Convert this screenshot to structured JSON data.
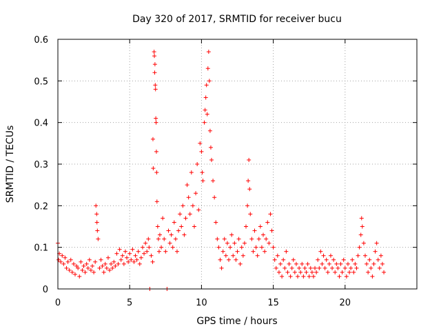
{
  "chart_data": {
    "type": "scatter",
    "title": "Day 320 of 2017, SRMTID for receiver bucu",
    "xlabel": "GPS time / hours",
    "ylabel": "SRMTID / TECUs",
    "xlim": [
      0,
      25
    ],
    "ylim": [
      0,
      0.6
    ],
    "xticks": [
      0,
      5,
      10,
      15,
      20
    ],
    "yticks": [
      0,
      0.1,
      0.2,
      0.3,
      0.4,
      0.5,
      0.6
    ],
    "xtick_labels": [
      "0",
      "5",
      "10",
      "15",
      "20"
    ],
    "ytick_labels": [
      "0",
      "0.1",
      "0.2",
      "0.3",
      "0.4",
      "0.5",
      "0.6"
    ],
    "grid": true,
    "marker": "plus",
    "color": "#ff0000",
    "series": [
      {
        "name": "SRMTID",
        "points": [
          [
            0.0,
            0.11
          ],
          [
            0.05,
            0.07
          ],
          [
            0.1,
            0.085
          ],
          [
            0.2,
            0.065
          ],
          [
            0.3,
            0.08
          ],
          [
            0.4,
            0.06
          ],
          [
            0.5,
            0.075
          ],
          [
            0.6,
            0.05
          ],
          [
            0.7,
            0.065
          ],
          [
            0.8,
            0.045
          ],
          [
            0.9,
            0.07
          ],
          [
            1.0,
            0.04
          ],
          [
            1.1,
            0.06
          ],
          [
            1.2,
            0.035
          ],
          [
            1.3,
            0.055
          ],
          [
            1.4,
            0.05
          ],
          [
            1.5,
            0.03
          ],
          [
            1.6,
            0.065
          ],
          [
            1.7,
            0.045
          ],
          [
            1.8,
            0.055
          ],
          [
            1.9,
            0.04
          ],
          [
            2.0,
            0.06
          ],
          [
            2.1,
            0.05
          ],
          [
            2.2,
            0.07
          ],
          [
            2.3,
            0.045
          ],
          [
            2.4,
            0.055
          ],
          [
            2.5,
            0.04
          ],
          [
            2.6,
            0.065
          ],
          [
            2.65,
            0.2
          ],
          [
            2.7,
            0.18
          ],
          [
            2.72,
            0.16
          ],
          [
            2.75,
            0.14
          ],
          [
            2.8,
            0.12
          ],
          [
            2.9,
            0.05
          ],
          [
            3.0,
            0.07
          ],
          [
            3.1,
            0.055
          ],
          [
            3.2,
            0.04
          ],
          [
            3.3,
            0.06
          ],
          [
            3.4,
            0.05
          ],
          [
            3.5,
            0.075
          ],
          [
            3.6,
            0.045
          ],
          [
            3.7,
            0.06
          ],
          [
            3.8,
            0.05
          ],
          [
            3.9,
            0.065
          ],
          [
            4.0,
            0.055
          ],
          [
            4.1,
            0.085
          ],
          [
            4.2,
            0.06
          ],
          [
            4.3,
            0.095
          ],
          [
            4.4,
            0.07
          ],
          [
            4.5,
            0.08
          ],
          [
            4.6,
            0.06
          ],
          [
            4.7,
            0.09
          ],
          [
            4.8,
            0.075
          ],
          [
            4.9,
            0.065
          ],
          [
            5.0,
            0.085
          ],
          [
            5.1,
            0.07
          ],
          [
            5.2,
            0.095
          ],
          [
            5.3,
            0.065
          ],
          [
            5.4,
            0.08
          ],
          [
            5.5,
            0.07
          ],
          [
            5.6,
            0.09
          ],
          [
            5.7,
            0.06
          ],
          [
            5.8,
            0.075
          ],
          [
            5.9,
            0.1
          ],
          [
            6.0,
            0.085
          ],
          [
            6.1,
            0.11
          ],
          [
            6.2,
            0.09
          ],
          [
            6.3,
            0.12
          ],
          [
            6.35,
            0.1
          ],
          [
            6.4,
            0.0
          ],
          [
            6.5,
            0.08
          ],
          [
            6.6,
            0.065
          ],
          [
            6.62,
            0.36
          ],
          [
            6.64,
            0.29
          ],
          [
            6.7,
            0.57
          ],
          [
            6.72,
            0.56
          ],
          [
            6.74,
            0.52
          ],
          [
            6.76,
            0.54
          ],
          [
            6.78,
            0.49
          ],
          [
            6.8,
            0.48
          ],
          [
            6.82,
            0.41
          ],
          [
            6.84,
            0.4
          ],
          [
            6.86,
            0.33
          ],
          [
            6.88,
            0.28
          ],
          [
            6.9,
            0.21
          ],
          [
            6.95,
            0.15
          ],
          [
            7.0,
            0.12
          ],
          [
            7.05,
            0.09
          ],
          [
            7.1,
            0.13
          ],
          [
            7.2,
            0.1
          ],
          [
            7.3,
            0.17
          ],
          [
            7.4,
            0.12
          ],
          [
            7.5,
            0.09
          ],
          [
            7.6,
            0.0
          ],
          [
            7.7,
            0.14
          ],
          [
            7.8,
            0.11
          ],
          [
            7.9,
            0.13
          ],
          [
            8.0,
            0.1
          ],
          [
            8.1,
            0.16
          ],
          [
            8.2,
            0.12
          ],
          [
            8.3,
            0.09
          ],
          [
            8.4,
            0.14
          ],
          [
            8.5,
            0.18
          ],
          [
            8.6,
            0.15
          ],
          [
            8.7,
            0.2
          ],
          [
            8.8,
            0.13
          ],
          [
            8.9,
            0.17
          ],
          [
            9.0,
            0.25
          ],
          [
            9.1,
            0.22
          ],
          [
            9.2,
            0.18
          ],
          [
            9.3,
            0.28
          ],
          [
            9.4,
            0.2
          ],
          [
            9.5,
            0.15
          ],
          [
            9.6,
            0.23
          ],
          [
            9.7,
            0.3
          ],
          [
            9.8,
            0.19
          ],
          [
            9.9,
            0.35
          ],
          [
            10.0,
            0.33
          ],
          [
            10.05,
            0.28
          ],
          [
            10.1,
            0.26
          ],
          [
            10.2,
            0.4
          ],
          [
            10.25,
            0.43
          ],
          [
            10.3,
            0.46
          ],
          [
            10.35,
            0.49
          ],
          [
            10.4,
            0.42
          ],
          [
            10.45,
            0.53
          ],
          [
            10.5,
            0.57
          ],
          [
            10.55,
            0.5
          ],
          [
            10.6,
            0.38
          ],
          [
            10.65,
            0.34
          ],
          [
            10.7,
            0.31
          ],
          [
            10.8,
            0.26
          ],
          [
            10.9,
            0.22
          ],
          [
            11.0,
            0.16
          ],
          [
            11.1,
            0.12
          ],
          [
            11.2,
            0.1
          ],
          [
            11.3,
            0.07
          ],
          [
            11.4,
            0.05
          ],
          [
            11.5,
            0.09
          ],
          [
            11.6,
            0.12
          ],
          [
            11.7,
            0.08
          ],
          [
            11.8,
            0.11
          ],
          [
            11.9,
            0.07
          ],
          [
            12.0,
            0.1
          ],
          [
            12.1,
            0.13
          ],
          [
            12.2,
            0.08
          ],
          [
            12.3,
            0.11
          ],
          [
            12.4,
            0.07
          ],
          [
            12.5,
            0.09
          ],
          [
            12.6,
            0.12
          ],
          [
            12.7,
            0.06
          ],
          [
            12.8,
            0.1
          ],
          [
            12.9,
            0.08
          ],
          [
            13.0,
            0.11
          ],
          [
            13.1,
            0.15
          ],
          [
            13.2,
            0.2
          ],
          [
            13.25,
            0.26
          ],
          [
            13.3,
            0.31
          ],
          [
            13.35,
            0.24
          ],
          [
            13.4,
            0.18
          ],
          [
            13.5,
            0.12
          ],
          [
            13.6,
            0.09
          ],
          [
            13.7,
            0.14
          ],
          [
            13.8,
            0.1
          ],
          [
            13.9,
            0.08
          ],
          [
            14.0,
            0.12
          ],
          [
            14.1,
            0.15
          ],
          [
            14.2,
            0.1
          ],
          [
            14.3,
            0.13
          ],
          [
            14.4,
            0.09
          ],
          [
            14.5,
            0.12
          ],
          [
            14.6,
            0.16
          ],
          [
            14.7,
            0.11
          ],
          [
            14.8,
            0.18
          ],
          [
            14.9,
            0.14
          ],
          [
            15.0,
            0.1
          ],
          [
            15.1,
            0.07
          ],
          [
            15.2,
            0.05
          ],
          [
            15.3,
            0.08
          ],
          [
            15.4,
            0.04
          ],
          [
            15.5,
            0.06
          ],
          [
            15.6,
            0.03
          ],
          [
            15.7,
            0.07
          ],
          [
            15.8,
            0.05
          ],
          [
            15.9,
            0.09
          ],
          [
            16.0,
            0.04
          ],
          [
            16.1,
            0.06
          ],
          [
            16.2,
            0.03
          ],
          [
            16.3,
            0.05
          ],
          [
            16.4,
            0.07
          ],
          [
            16.5,
            0.04
          ],
          [
            16.6,
            0.06
          ],
          [
            16.7,
            0.03
          ],
          [
            16.8,
            0.05
          ],
          [
            16.9,
            0.04
          ],
          [
            17.0,
            0.06
          ],
          [
            17.1,
            0.03
          ],
          [
            17.2,
            0.05
          ],
          [
            17.3,
            0.04
          ],
          [
            17.4,
            0.06
          ],
          [
            17.5,
            0.03
          ],
          [
            17.6,
            0.05
          ],
          [
            17.7,
            0.04
          ],
          [
            17.8,
            0.03
          ],
          [
            17.9,
            0.05
          ],
          [
            18.0,
            0.04
          ],
          [
            18.1,
            0.07
          ],
          [
            18.2,
            0.05
          ],
          [
            18.3,
            0.09
          ],
          [
            18.4,
            0.06
          ],
          [
            18.5,
            0.08
          ],
          [
            18.6,
            0.05
          ],
          [
            18.7,
            0.07
          ],
          [
            18.8,
            0.04
          ],
          [
            18.9,
            0.06
          ],
          [
            19.0,
            0.08
          ],
          [
            19.1,
            0.05
          ],
          [
            19.2,
            0.07
          ],
          [
            19.3,
            0.04
          ],
          [
            19.4,
            0.06
          ],
          [
            19.5,
            0.05
          ],
          [
            19.6,
            0.03
          ],
          [
            19.7,
            0.06
          ],
          [
            19.8,
            0.04
          ],
          [
            19.9,
            0.07
          ],
          [
            20.0,
            0.05
          ],
          [
            20.1,
            0.03
          ],
          [
            20.2,
            0.06
          ],
          [
            20.3,
            0.04
          ],
          [
            20.4,
            0.05
          ],
          [
            20.5,
            0.07
          ],
          [
            20.6,
            0.04
          ],
          [
            20.7,
            0.06
          ],
          [
            20.8,
            0.05
          ],
          [
            20.9,
            0.08
          ],
          [
            21.0,
            0.1
          ],
          [
            21.1,
            0.13
          ],
          [
            21.15,
            0.17
          ],
          [
            21.2,
            0.15
          ],
          [
            21.3,
            0.11
          ],
          [
            21.4,
            0.08
          ],
          [
            21.5,
            0.06
          ],
          [
            21.6,
            0.04
          ],
          [
            21.7,
            0.07
          ],
          [
            21.8,
            0.05
          ],
          [
            21.9,
            0.03
          ],
          [
            22.0,
            0.06
          ],
          [
            22.1,
            0.09
          ],
          [
            22.2,
            0.11
          ],
          [
            22.3,
            0.07
          ],
          [
            22.4,
            0.05
          ],
          [
            22.5,
            0.08
          ],
          [
            22.6,
            0.06
          ],
          [
            22.7,
            0.04
          ]
        ]
      }
    ]
  }
}
